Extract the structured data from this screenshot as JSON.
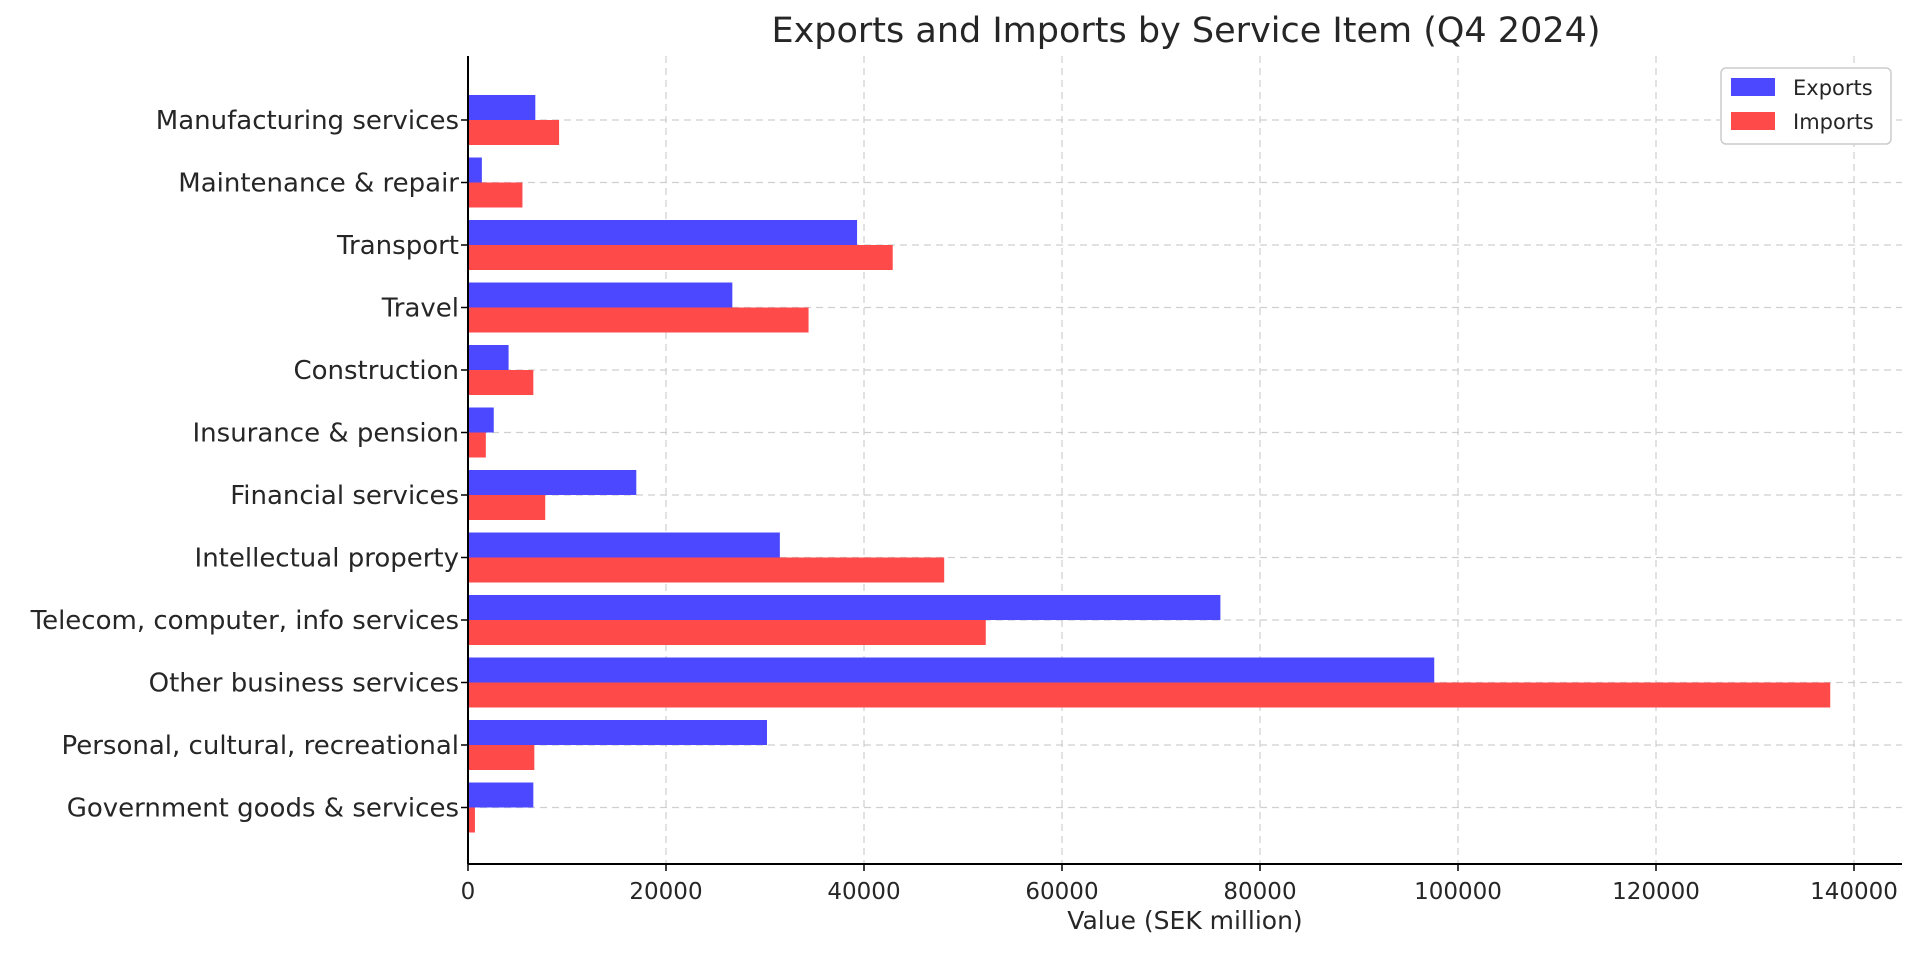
{
  "chart_data": {
    "type": "bar",
    "orientation": "horizontal",
    "title": "Exports and Imports by Service Item (Q4 2024)",
    "xlabel": "Value (SEK million)",
    "ylabel": "",
    "xlim": [
      0,
      145000
    ],
    "xticks": [
      0,
      20000,
      40000,
      60000,
      80000,
      100000,
      120000,
      140000
    ],
    "xtick_labels": [
      "0",
      "20000",
      "40000",
      "60000",
      "80000",
      "100000",
      "120000",
      "140000"
    ],
    "grid": true,
    "legend_position": "top-right",
    "categories": [
      "Manufacturing services",
      "Maintenance & repair",
      "Transport",
      "Travel",
      "Construction",
      "Insurance & pension",
      "Financial services",
      "Intellectual property",
      "Telecom, computer, info services",
      "Other business services",
      "Personal, cultural, recreational",
      "Government goods & services"
    ],
    "series": [
      {
        "name": "Exports",
        "color": "#4b48ff",
        "values": [
          6800,
          1400,
          39300,
          26700,
          4100,
          2600,
          17000,
          31500,
          76000,
          97600,
          30200,
          6600
        ]
      },
      {
        "name": "Imports",
        "color": "#ff4a4a",
        "values": [
          9200,
          5500,
          42900,
          34400,
          6600,
          1800,
          7800,
          48100,
          52300,
          137600,
          6700,
          700
        ]
      }
    ]
  }
}
